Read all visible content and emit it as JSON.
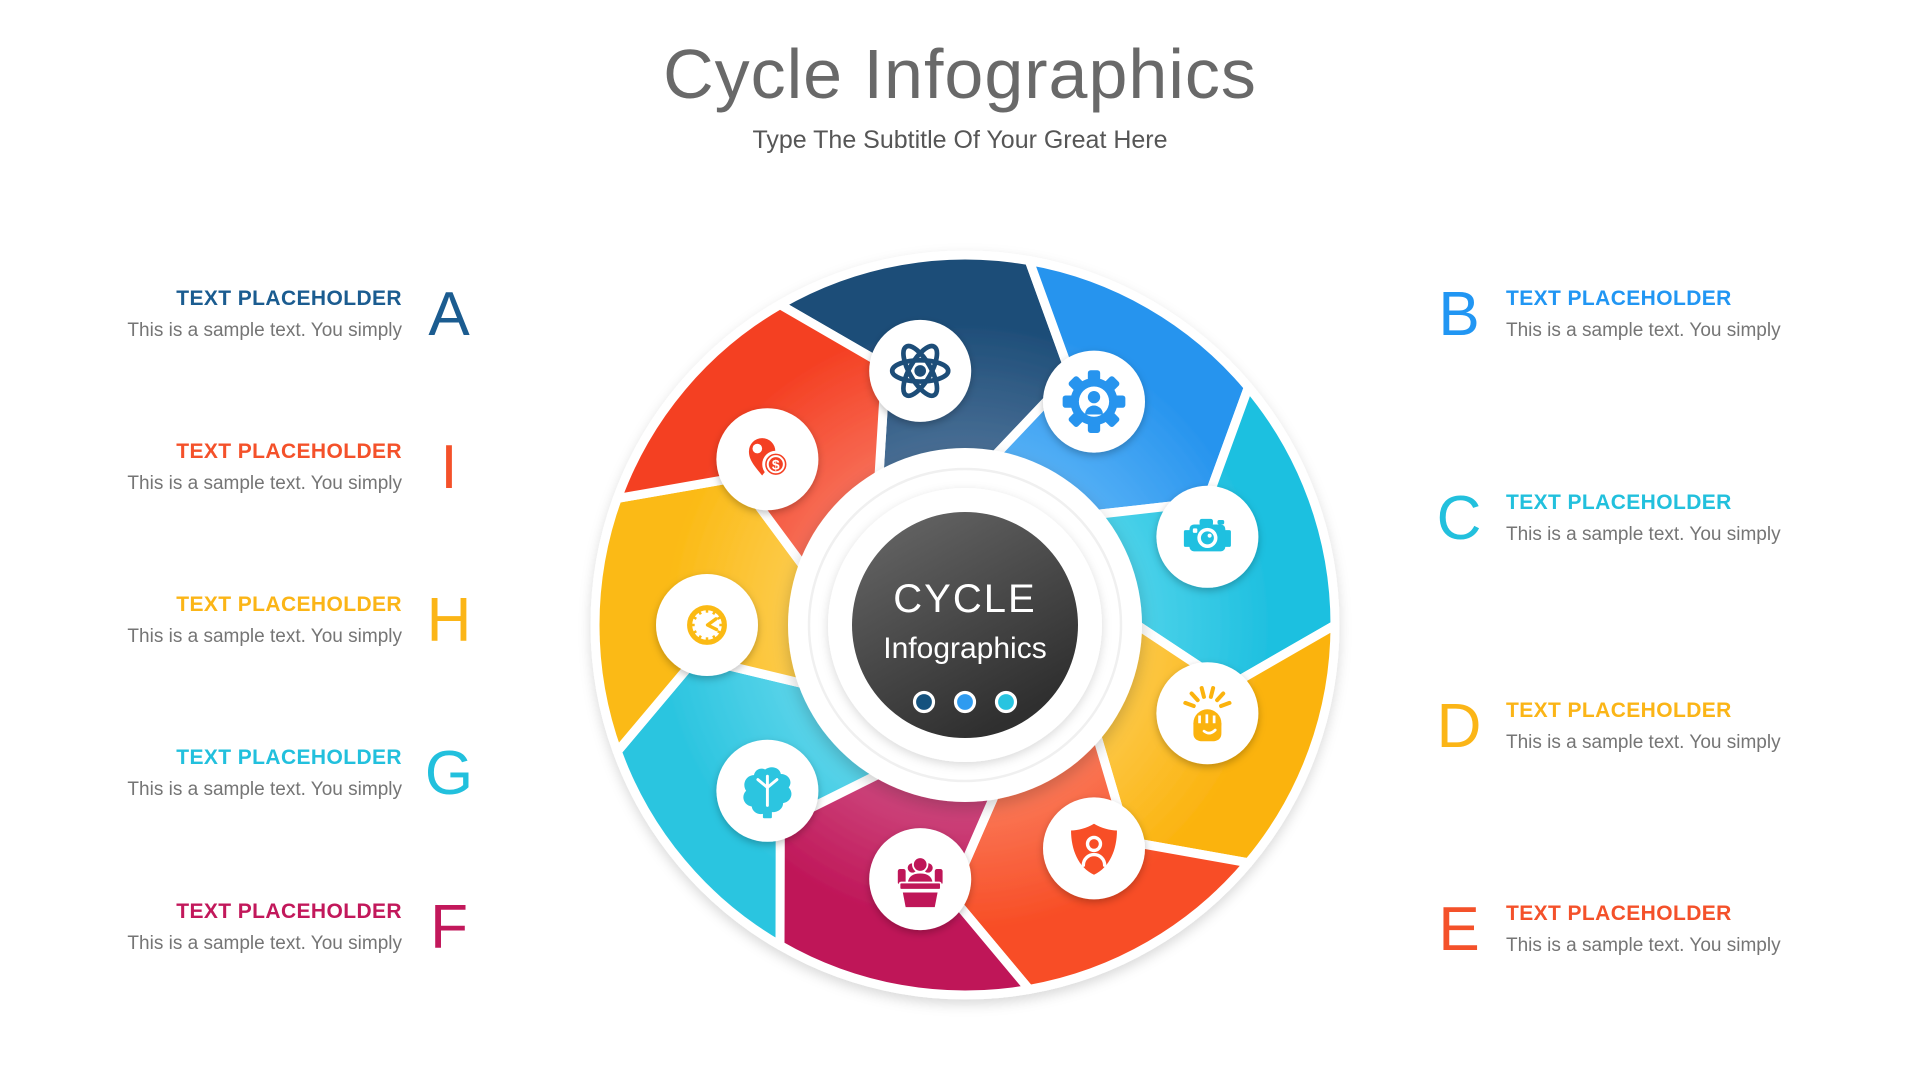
{
  "title": "Cycle Infographics",
  "subtitle": "Type The Subtitle Of Your Great Here",
  "center": {
    "title": "CYCLE",
    "subtitle": "Infographics",
    "dot_colors": [
      "#14527e",
      "#2e9bf0",
      "#28c4e0"
    ]
  },
  "left_items": [
    {
      "letter": "A",
      "heading": "TEXT PLACEHOLDER",
      "body": "This is a sample text. You simply",
      "color": "#1b5c90"
    },
    {
      "letter": "I",
      "heading": "TEXT PLACEHOLDER",
      "body": "This is a sample text. You simply",
      "color": "#f4512a"
    },
    {
      "letter": "H",
      "heading": "TEXT PLACEHOLDER",
      "body": "This is a sample text. You simply",
      "color": "#fbb517"
    },
    {
      "letter": "G",
      "heading": "TEXT PLACEHOLDER",
      "body": "This is a sample text. You simply",
      "color": "#22c0dd"
    },
    {
      "letter": "F",
      "heading": "TEXT PLACEHOLDER",
      "body": "This is a sample text. You simply",
      "color": "#c2185b"
    }
  ],
  "right_items": [
    {
      "letter": "B",
      "heading": "TEXT PLACEHOLDER",
      "body": "This is a sample text. You simply",
      "color": "#2196f3"
    },
    {
      "letter": "C",
      "heading": "TEXT PLACEHOLDER",
      "body": "This is a sample text. You simply",
      "color": "#22c0dd"
    },
    {
      "letter": "D",
      "heading": "TEXT PLACEHOLDER",
      "body": "This is a sample text. You simply",
      "color": "#fbb517"
    },
    {
      "letter": "E",
      "heading": "TEXT PLACEHOLDER",
      "body": "This is a sample text. You simply",
      "color": "#f4512a"
    }
  ],
  "wheel": {
    "segments": [
      {
        "icon": "atom-icon",
        "color": "#1d4d78",
        "color_light": "#4b7096"
      },
      {
        "icon": "gear-user-icon",
        "color": "#2794ee",
        "color_light": "#57b1f6"
      },
      {
        "icon": "camera-icon",
        "color": "#1fc0e0",
        "color_light": "#4fd3ea"
      },
      {
        "icon": "fist-rays-icon",
        "color": "#fbb30e",
        "color_light": "#fcc94a"
      },
      {
        "icon": "shield-user-icon",
        "color": "#f84e26",
        "color_light": "#fa7b5b"
      },
      {
        "icon": "people-desk-icon",
        "color": "#bf1658",
        "color_light": "#ce4a7f"
      },
      {
        "icon": "brain-turbine-icon",
        "color": "#2cc5e0",
        "color_light": "#5fd5ea"
      },
      {
        "icon": "clock-icon",
        "color": "#fbba14",
        "color_light": "#fccc4f"
      },
      {
        "icon": "pin-dollar-icon",
        "color": "#f44023",
        "color_light": "#f7705a"
      }
    ]
  }
}
